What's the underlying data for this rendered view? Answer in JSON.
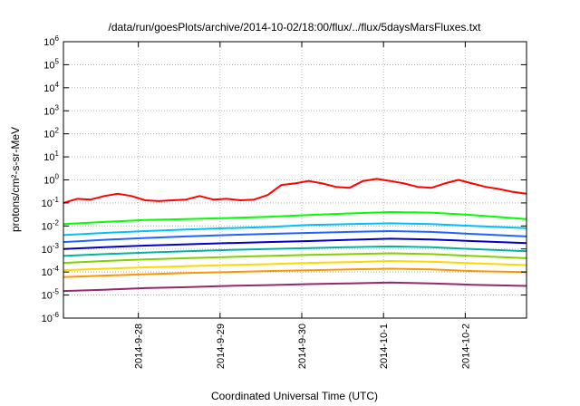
{
  "chart_data": {
    "type": "line",
    "title": "/data/run/goesPlots/archive/2014-10-02/18:00/flux/../flux/5daysMarsFluxes.txt",
    "xlabel": "Coordinated Universal Time (UTC)",
    "ylabel": "protons/cm²-s-sr-MeV",
    "yscale": "log",
    "ylim": [
      1e-06,
      1000000.0
    ],
    "xlim": [
      "2014-09-27 02:00",
      "2014-10-02 18:00"
    ],
    "x_ticks": [
      "2014-9-28",
      "2014-9-29",
      "2014-9-30",
      "2014-10-1",
      "2014-10-2"
    ],
    "grid": true,
    "series": [
      {
        "color": "#ff0000",
        "x": [
          "2014-09-27 02:00",
          "2014-09-27 06:00",
          "2014-09-27 10:00",
          "2014-09-27 14:00",
          "2014-09-27 18:00",
          "2014-09-27 22:00",
          "2014-09-28 02:00",
          "2014-09-28 06:00",
          "2014-09-28 10:00",
          "2014-09-28 14:00",
          "2014-09-28 18:00",
          "2014-09-28 22:00",
          "2014-09-29 02:00",
          "2014-09-29 06:00",
          "2014-09-29 10:00",
          "2014-09-29 14:00",
          "2014-09-29 18:00",
          "2014-09-29 22:00",
          "2014-09-30 02:00",
          "2014-09-30 06:00",
          "2014-09-30 10:00",
          "2014-09-30 14:00",
          "2014-09-30 18:00",
          "2014-09-30 22:00",
          "2014-10-01 02:00",
          "2014-10-01 06:00",
          "2014-10-01 10:00",
          "2014-10-01 14:00",
          "2014-10-01 18:00",
          "2014-10-01 22:00",
          "2014-10-02 02:00",
          "2014-10-02 06:00",
          "2014-10-02 10:00",
          "2014-10-02 14:00",
          "2014-10-02 18:00"
        ],
        "values": [
          0.1,
          0.15,
          0.14,
          0.2,
          0.25,
          0.2,
          0.13,
          0.12,
          0.13,
          0.14,
          0.2,
          0.14,
          0.15,
          0.13,
          0.14,
          0.22,
          0.6,
          0.7,
          0.9,
          0.7,
          0.5,
          0.45,
          0.9,
          1.1,
          0.9,
          0.7,
          0.5,
          0.45,
          0.7,
          1.0,
          0.7,
          0.5,
          0.4,
          0.3,
          0.25
        ]
      },
      {
        "color": "#00ff00",
        "x": [
          "2014-09-27 02:00",
          "2014-09-27 14:00",
          "2014-09-28 02:00",
          "2014-09-28 14:00",
          "2014-09-29 02:00",
          "2014-09-29 14:00",
          "2014-09-30 02:00",
          "2014-09-30 14:00",
          "2014-10-01 02:00",
          "2014-10-01 14:00",
          "2014-10-02 02:00",
          "2014-10-02 18:00"
        ],
        "values": [
          0.012,
          0.015,
          0.018,
          0.02,
          0.022,
          0.025,
          0.03,
          0.035,
          0.04,
          0.038,
          0.03,
          0.02
        ]
      },
      {
        "color": "#00bfff",
        "x": [
          "2014-09-27 02:00",
          "2014-09-27 14:00",
          "2014-09-28 02:00",
          "2014-09-28 14:00",
          "2014-09-29 02:00",
          "2014-09-29 14:00",
          "2014-09-30 02:00",
          "2014-09-30 14:00",
          "2014-10-01 02:00",
          "2014-10-01 14:00",
          "2014-10-02 02:00",
          "2014-10-02 18:00"
        ],
        "values": [
          0.004,
          0.005,
          0.006,
          0.007,
          0.008,
          0.009,
          0.011,
          0.012,
          0.013,
          0.012,
          0.01,
          0.008
        ]
      },
      {
        "color": "#1e64ff",
        "x": [
          "2014-09-27 02:00",
          "2014-09-27 14:00",
          "2014-09-28 02:00",
          "2014-09-28 14:00",
          "2014-09-29 02:00",
          "2014-09-29 14:00",
          "2014-09-30 02:00",
          "2014-09-30 14:00",
          "2014-10-01 02:00",
          "2014-10-01 14:00",
          "2014-10-02 02:00",
          "2014-10-02 18:00"
        ],
        "values": [
          0.002,
          0.0025,
          0.003,
          0.0035,
          0.004,
          0.0045,
          0.005,
          0.0055,
          0.006,
          0.0055,
          0.0045,
          0.0035
        ]
      },
      {
        "color": "#0000c8",
        "x": [
          "2014-09-27 02:00",
          "2014-09-27 14:00",
          "2014-09-28 02:00",
          "2014-09-28 14:00",
          "2014-09-29 02:00",
          "2014-09-29 14:00",
          "2014-09-30 02:00",
          "2014-09-30 14:00",
          "2014-10-01 02:00",
          "2014-10-01 14:00",
          "2014-10-02 02:00",
          "2014-10-02 18:00"
        ],
        "values": [
          0.001,
          0.0012,
          0.0014,
          0.0016,
          0.0018,
          0.002,
          0.0022,
          0.0025,
          0.0028,
          0.0026,
          0.0022,
          0.0018
        ]
      },
      {
        "color": "#00b4a0",
        "x": [
          "2014-09-27 02:00",
          "2014-09-27 14:00",
          "2014-09-28 02:00",
          "2014-09-28 14:00",
          "2014-09-29 02:00",
          "2014-09-29 14:00",
          "2014-09-30 02:00",
          "2014-09-30 14:00",
          "2014-10-01 02:00",
          "2014-10-01 14:00",
          "2014-10-02 02:00",
          "2014-10-02 18:00"
        ],
        "values": [
          0.0005,
          0.0006,
          0.0007,
          0.0008,
          0.0009,
          0.001,
          0.0011,
          0.0012,
          0.0013,
          0.0012,
          0.001,
          0.0008
        ]
      },
      {
        "color": "#7fd200",
        "x": [
          "2014-09-27 02:00",
          "2014-09-27 14:00",
          "2014-09-28 02:00",
          "2014-09-28 14:00",
          "2014-09-29 02:00",
          "2014-09-29 14:00",
          "2014-09-30 02:00",
          "2014-09-30 14:00",
          "2014-10-01 02:00",
          "2014-10-01 14:00",
          "2014-10-02 02:00",
          "2014-10-02 18:00"
        ],
        "values": [
          0.00025,
          0.0003,
          0.00035,
          0.0004,
          0.00045,
          0.0005,
          0.00055,
          0.0006,
          0.00065,
          0.0006,
          0.0005,
          0.0004
        ]
      },
      {
        "color": "#ffd700",
        "x": [
          "2014-09-27 02:00",
          "2014-09-27 14:00",
          "2014-09-28 02:00",
          "2014-09-28 14:00",
          "2014-09-29 02:00",
          "2014-09-29 14:00",
          "2014-09-30 02:00",
          "2014-09-30 14:00",
          "2014-10-01 02:00",
          "2014-10-01 14:00",
          "2014-10-02 02:00",
          "2014-10-02 18:00"
        ],
        "values": [
          0.00012,
          0.00014,
          0.00016,
          0.00018,
          0.0002,
          0.00022,
          0.00025,
          0.00027,
          0.0003,
          0.00028,
          0.00024,
          0.0002
        ]
      },
      {
        "color": "#ff9600",
        "x": [
          "2014-09-27 02:00",
          "2014-09-27 14:00",
          "2014-09-28 02:00",
          "2014-09-28 14:00",
          "2014-09-29 02:00",
          "2014-09-29 14:00",
          "2014-09-30 02:00",
          "2014-09-30 14:00",
          "2014-10-01 02:00",
          "2014-10-01 14:00",
          "2014-10-02 02:00",
          "2014-10-02 18:00"
        ],
        "values": [
          6e-05,
          7e-05,
          8e-05,
          9e-05,
          0.0001,
          0.00011,
          0.00012,
          0.00013,
          0.00014,
          0.00013,
          0.00011,
          0.0001
        ]
      },
      {
        "color": "#96286e",
        "x": [
          "2014-09-27 02:00",
          "2014-09-27 14:00",
          "2014-09-28 02:00",
          "2014-09-28 14:00",
          "2014-09-29 02:00",
          "2014-09-29 14:00",
          "2014-09-30 02:00",
          "2014-09-30 14:00",
          "2014-10-01 02:00",
          "2014-10-01 14:00",
          "2014-10-02 02:00",
          "2014-10-02 18:00"
        ],
        "values": [
          1.5e-05,
          1.7e-05,
          2e-05,
          2.2e-05,
          2.5e-05,
          2.7e-05,
          3e-05,
          3.2e-05,
          3.5e-05,
          3.2e-05,
          2.8e-05,
          2.5e-05
        ]
      }
    ]
  }
}
